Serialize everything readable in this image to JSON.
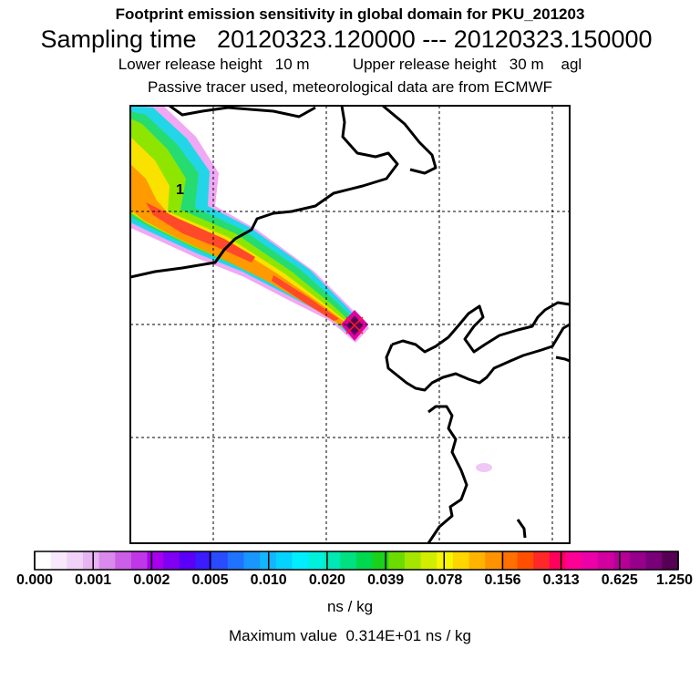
{
  "header": {
    "title": "Footprint emission sensitivity in global domain for PKU_201203",
    "sampling": "Sampling time   20120323.120000 --- 20120323.150000",
    "release": "Lower release height   10 m          Upper release height   30 m    agl",
    "tracer": "Passive tracer used, meteorological data are from ECMWF"
  },
  "map": {
    "contour_label": "1",
    "release_marker": "cross-marker"
  },
  "colorbar": {
    "tick_labels": [
      "0.000",
      "0.001",
      "0.002",
      "0.005",
      "0.010",
      "0.020",
      "0.039",
      "0.078",
      "0.156",
      "0.313",
      "0.625",
      "1.250"
    ],
    "units": "ns / kg",
    "colors": [
      "#ffffff",
      "#f8e8fb",
      "#f0d2f7",
      "#e6b4f2",
      "#d98aec",
      "#cc5fe8",
      "#c037e8",
      "#a600ee",
      "#7f00f2",
      "#5a00f6",
      "#3a1cff",
      "#2a4cff",
      "#1f73ff",
      "#1a96ff",
      "#12b6ff",
      "#06d2ff",
      "#00eeff",
      "#00f0de",
      "#00e8b4",
      "#00e080",
      "#00d84e",
      "#1ad21a",
      "#6cdc00",
      "#a4e600",
      "#d2ee00",
      "#f8f600",
      "#ffd600",
      "#ffb400",
      "#ff9200",
      "#ff7000",
      "#ff4e00",
      "#ff2828",
      "#ff005a",
      "#ff0096",
      "#ee00a8",
      "#d200a0",
      "#b40096",
      "#96008a",
      "#780078",
      "#560054"
    ]
  },
  "footer": {
    "max_value": "Maximum value  0.314E+01 ns / kg"
  }
}
